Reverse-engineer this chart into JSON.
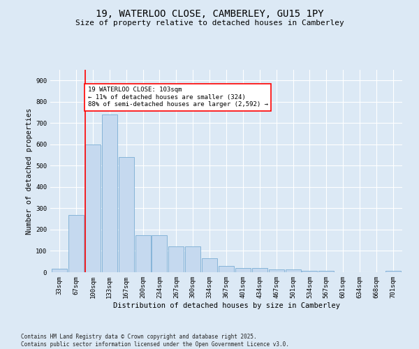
{
  "title": "19, WATERLOO CLOSE, CAMBERLEY, GU15 1PY",
  "subtitle": "Size of property relative to detached houses in Camberley",
  "xlabel": "Distribution of detached houses by size in Camberley",
  "ylabel": "Number of detached properties",
  "categories": [
    "33sqm",
    "67sqm",
    "100sqm",
    "133sqm",
    "167sqm",
    "200sqm",
    "234sqm",
    "267sqm",
    "300sqm",
    "334sqm",
    "367sqm",
    "401sqm",
    "434sqm",
    "467sqm",
    "501sqm",
    "534sqm",
    "567sqm",
    "601sqm",
    "634sqm",
    "668sqm",
    "701sqm"
  ],
  "values": [
    18,
    270,
    600,
    740,
    540,
    175,
    175,
    120,
    120,
    65,
    30,
    20,
    20,
    12,
    12,
    5,
    5,
    0,
    0,
    0,
    8
  ],
  "bar_color": "#c5d9ef",
  "bar_edge_color": "#7aadd4",
  "red_line_index": 2,
  "annotation_line1": "19 WATERLOO CLOSE: 103sqm",
  "annotation_line2": "← 11% of detached houses are smaller (324)",
  "annotation_line3": "88% of semi-detached houses are larger (2,592) →",
  "annotation_box_color": "white",
  "annotation_box_edge": "red",
  "ylim": [
    0,
    950
  ],
  "yticks": [
    0,
    100,
    200,
    300,
    400,
    500,
    600,
    700,
    800,
    900
  ],
  "footer": "Contains HM Land Registry data © Crown copyright and database right 2025.\nContains public sector information licensed under the Open Government Licence v3.0.",
  "bg_color": "#dce9f5",
  "plot_bg_color": "#dce9f5",
  "grid_color": "white",
  "title_fontsize": 10,
  "subtitle_fontsize": 8,
  "tick_fontsize": 6.5,
  "label_fontsize": 7.5,
  "footer_fontsize": 5.5,
  "annot_fontsize": 6.5
}
